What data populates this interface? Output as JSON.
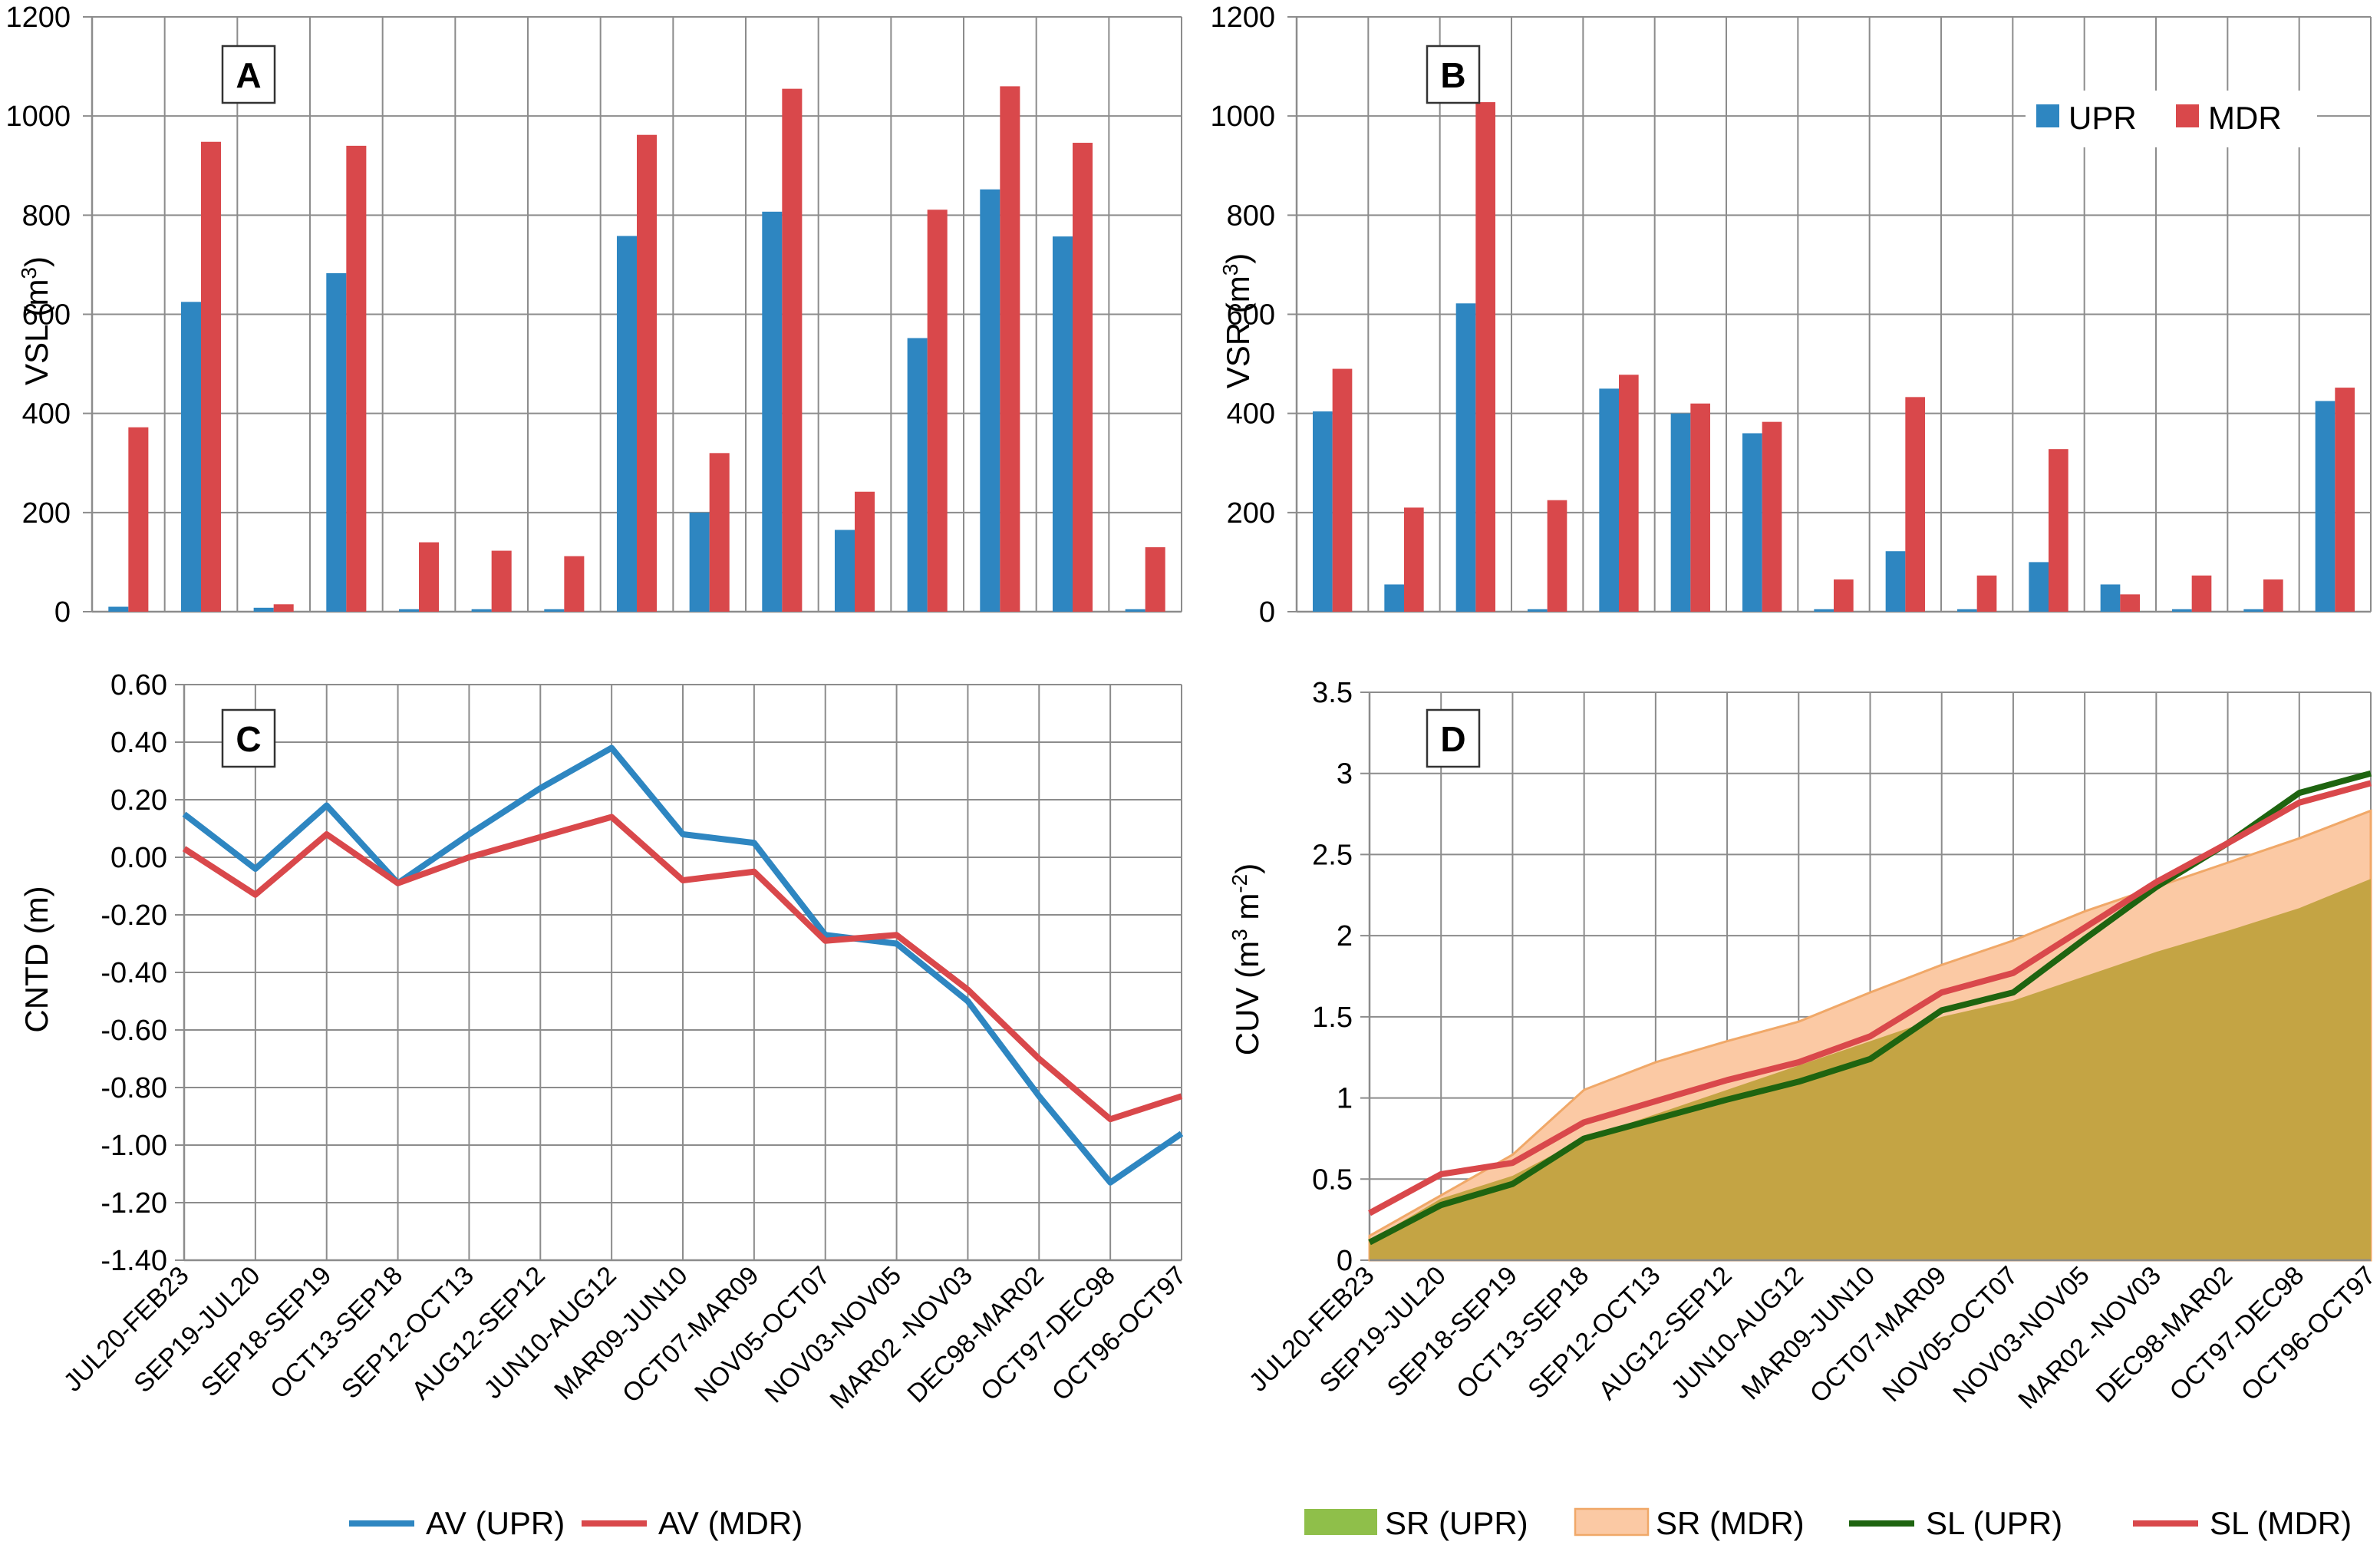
{
  "categories": [
    "JUL20-FEB23",
    "SEP19-JUL20",
    "SEP18-SEP19",
    "OCT13-SEP18",
    "SEP12-OCT13",
    "AUG12-SEP12",
    "JUN10-AUG12",
    "MAR09-JUN10",
    "OCT07-MAR09",
    "NOV05-OCT07",
    "NOV03-NOV05",
    "MAR02 -NOV03",
    "DEC98-MAR02",
    "OCT97-DEC98",
    "OCT96-OCT97"
  ],
  "colors": {
    "upr": "#2e86c1",
    "mdr": "#d9484b",
    "sr_upr": "#c4a444",
    "sr_mdr": "#fbc9a4",
    "sr_mdr_edge": "#f0a868",
    "sl_upr": "#1e6410",
    "sr_upr_legend": "#8fbf4a"
  },
  "chart_data": [
    {
      "panel": "A",
      "type": "bar",
      "ylabel": "VSL (m",
      "ylabel_sup": "3",
      "ylabel_end": ")",
      "ylim": [
        0,
        1200
      ],
      "yticks": [
        "0",
        "200",
        "400",
        "600",
        "800",
        "1000",
        "1200"
      ],
      "series": [
        {
          "name": "UPR",
          "values": [
            10,
            625,
            8,
            683,
            5,
            5,
            5,
            758,
            200,
            807,
            165,
            552,
            852,
            757,
            5
          ]
        },
        {
          "name": "MDR",
          "values": [
            372,
            948,
            15,
            940,
            140,
            123,
            112,
            962,
            320,
            1055,
            242,
            811,
            1060,
            946,
            130
          ]
        }
      ]
    },
    {
      "panel": "B",
      "type": "bar",
      "ylabel": "VSR (m",
      "ylabel_sup": "3",
      "ylabel_end": ")",
      "ylim": [
        0,
        1200
      ],
      "yticks": [
        "0",
        "200",
        "400",
        "600",
        "800",
        "1000",
        "1200"
      ],
      "legend": [
        "UPR",
        "MDR"
      ],
      "series": [
        {
          "name": "UPR",
          "values": [
            404,
            55,
            622,
            5,
            450,
            400,
            360,
            5,
            122,
            5,
            100,
            55,
            5,
            5,
            425
          ]
        },
        {
          "name": "MDR",
          "values": [
            490,
            210,
            1028,
            225,
            478,
            420,
            383,
            65,
            433,
            73,
            328,
            35,
            73,
            65,
            452
          ]
        }
      ]
    },
    {
      "panel": "C",
      "type": "line",
      "ylabel": "CNTD (m)",
      "ylim": [
        -1.4,
        0.6
      ],
      "yticks": [
        "-1.40",
        "-1.20",
        "-1.00",
        "-0.80",
        "-0.60",
        "-0.40",
        "-0.20",
        "0.00",
        "0.20",
        "0.40",
        "0.60"
      ],
      "legend": [
        "AV (UPR)",
        "AV (MDR)"
      ],
      "series": [
        {
          "name": "AV (UPR)",
          "values": [
            0.15,
            -0.04,
            0.18,
            -0.09,
            0.08,
            0.24,
            0.38,
            0.08,
            0.05,
            -0.27,
            -0.3,
            -0.5,
            -0.83,
            -1.13,
            -0.96
          ]
        },
        {
          "name": "AV (MDR)",
          "values": [
            0.03,
            -0.13,
            0.08,
            -0.09,
            0.0,
            0.07,
            0.14,
            -0.08,
            -0.05,
            -0.29,
            -0.27,
            -0.46,
            -0.7,
            -0.91,
            -0.83
          ]
        }
      ]
    },
    {
      "panel": "D",
      "type": "area",
      "ylabel": "CUV (m",
      "ylabel_sup1": "3",
      "ylabel_mid": " m",
      "ylabel_sup2": "-2",
      "ylabel_end": ")",
      "ylim": [
        0,
        3.5
      ],
      "yticks": [
        "0",
        "0.5",
        "1",
        "1.5",
        "2",
        "2.5",
        "3",
        "3.5"
      ],
      "legend": [
        "SR (UPR)",
        "SR (MDR)",
        "SL (UPR)",
        "SL (MDR)"
      ],
      "series": [
        {
          "name": "SR (UPR)",
          "values": [
            0.12,
            0.38,
            0.52,
            0.75,
            0.9,
            1.05,
            1.2,
            1.35,
            1.5,
            1.6,
            1.75,
            1.9,
            2.03,
            2.17,
            2.35
          ]
        },
        {
          "name": "SR (MDR)",
          "values": [
            0.15,
            0.4,
            0.65,
            1.05,
            1.22,
            1.35,
            1.47,
            1.65,
            1.82,
            1.97,
            2.15,
            2.3,
            2.45,
            2.6,
            2.77
          ]
        },
        {
          "name": "SL (UPR)",
          "values": [
            0.11,
            0.34,
            0.47,
            0.75,
            0.87,
            0.99,
            1.1,
            1.24,
            1.54,
            1.65,
            1.98,
            2.3,
            2.57,
            2.88,
            3.0
          ]
        },
        {
          "name": "SL (MDR)",
          "values": [
            0.29,
            0.53,
            0.6,
            0.85,
            0.98,
            1.11,
            1.22,
            1.38,
            1.65,
            1.77,
            2.05,
            2.33,
            2.57,
            2.82,
            2.94
          ]
        }
      ]
    }
  ]
}
